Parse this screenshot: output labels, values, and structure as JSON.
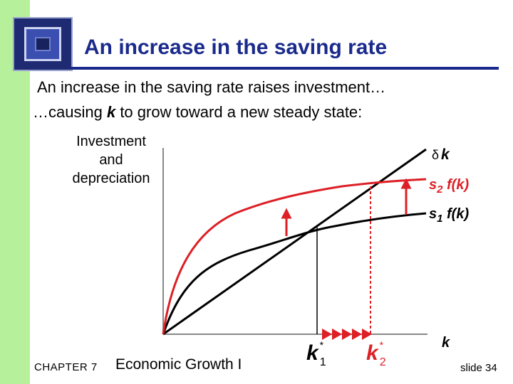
{
  "slide": {
    "title": "An increase in the saving rate",
    "line1": "An increase in the saving rate raises investment…",
    "line2_prefix": "…causing ",
    "line2_var": "k",
    "line2_suffix": " to grow toward a new steady state:"
  },
  "diagram": {
    "y_label_line1": "Investment",
    "y_label_line2": "and",
    "y_label_line3": "depreciation",
    "depreciation_label": "k",
    "depreciation_symbol": "δ",
    "s2_label_prefix": "s",
    "s2_sub": "2",
    "s2_label_suffix": " f(k)",
    "s1_label_prefix": "s",
    "s1_sub": "1",
    "s1_label_suffix": " f(k)",
    "x_label": "k",
    "k1_label": "k",
    "k1_sub": "1",
    "k1_sup": "*",
    "k2_label": "k",
    "k2_sub": "2",
    "k2_sup": "*",
    "colors": {
      "new_curve": "#dd1f26",
      "old_curve": "#000000",
      "axis": "#888888"
    }
  },
  "footer": {
    "chapter": "CHAPTER 7",
    "title": "Economic Growth I",
    "slide": "slide 34"
  }
}
